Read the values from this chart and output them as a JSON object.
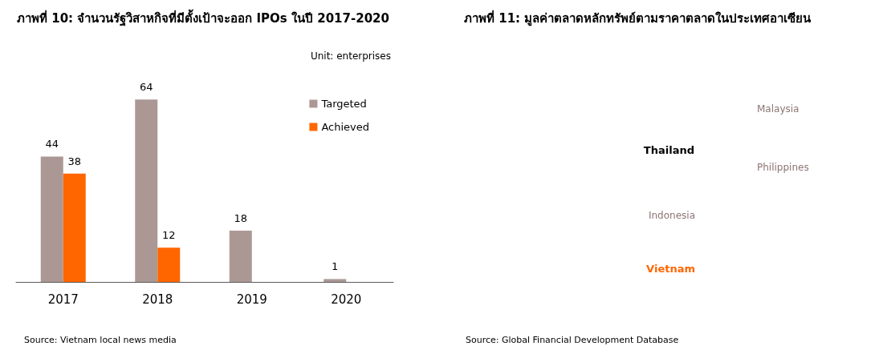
{
  "chart_data": [
    {
      "type": "bar",
      "title": "ภาพที่ 10: จำนวนรัฐวิสาหกิจที่มีตั้งเป้าจะออก IPOs ในปี 2017-2020",
      "categories": [
        "2017",
        "2018",
        "2019",
        "2020"
      ],
      "series": [
        {
          "name": "Targeted",
          "color": "#ab9894",
          "values": [
            44,
            64,
            18,
            1
          ]
        },
        {
          "name": "Achieved",
          "color": "#ff6600",
          "values": [
            38,
            12,
            null,
            null
          ]
        }
      ],
      "data_labels": true,
      "legend": "top right",
      "tick_labels": "x",
      "annotations": [
        "Unit: enterprises",
        "Source: Vietnam local news media"
      ]
    },
    {
      "type": "other",
      "title": "ภาพที่ 11: มูลค่าตลาดหลักทรัพย์ตามราคาตลาดในประเทศอาเซียน",
      "annotations": [
        "Malaysia",
        "Thailand",
        "Philippines",
        "Indonesia",
        "Vietnam",
        "Source: Global Financial Development Database"
      ]
    }
  ]
}
